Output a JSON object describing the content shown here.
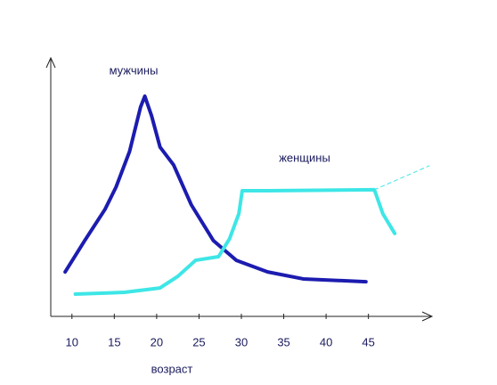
{
  "chart_data": {
    "type": "line",
    "x_label": "возраст",
    "xlim": [
      7.5,
      52.5
    ],
    "xticks": [
      10,
      15,
      20,
      25,
      30,
      35,
      40,
      45
    ],
    "ylim": [
      0,
      100
    ],
    "grid": false,
    "series": [
      {
        "name": "мужчины",
        "color": "#1c1cb0",
        "x": [
          9.2,
          11.5,
          13.9,
          15.2,
          16.8,
          18.1,
          18.6,
          19.4,
          20.4,
          22.0,
          24.1,
          26.7,
          29.4,
          33.1,
          37.3,
          44.7
        ],
        "values": [
          17.2,
          29.3,
          41.4,
          50,
          63.8,
          81,
          85.2,
          77.6,
          65.5,
          58.6,
          43.1,
          29.3,
          21.7,
          17.2,
          14.5,
          13.4
        ]
      },
      {
        "name": "женщины",
        "color": "#3ee6e6",
        "x": [
          10.4,
          16.2,
          20.4,
          22.5,
          24.6,
          27.3,
          28.6,
          29.7,
          30.1,
          33.1,
          45.7,
          46.7,
          48.1
        ],
        "values": [
          8.6,
          9.3,
          11.0,
          15.5,
          21.7,
          23.1,
          30,
          39.7,
          48.6,
          48.6,
          49,
          39.7,
          32.1
        ]
      }
    ]
  }
}
